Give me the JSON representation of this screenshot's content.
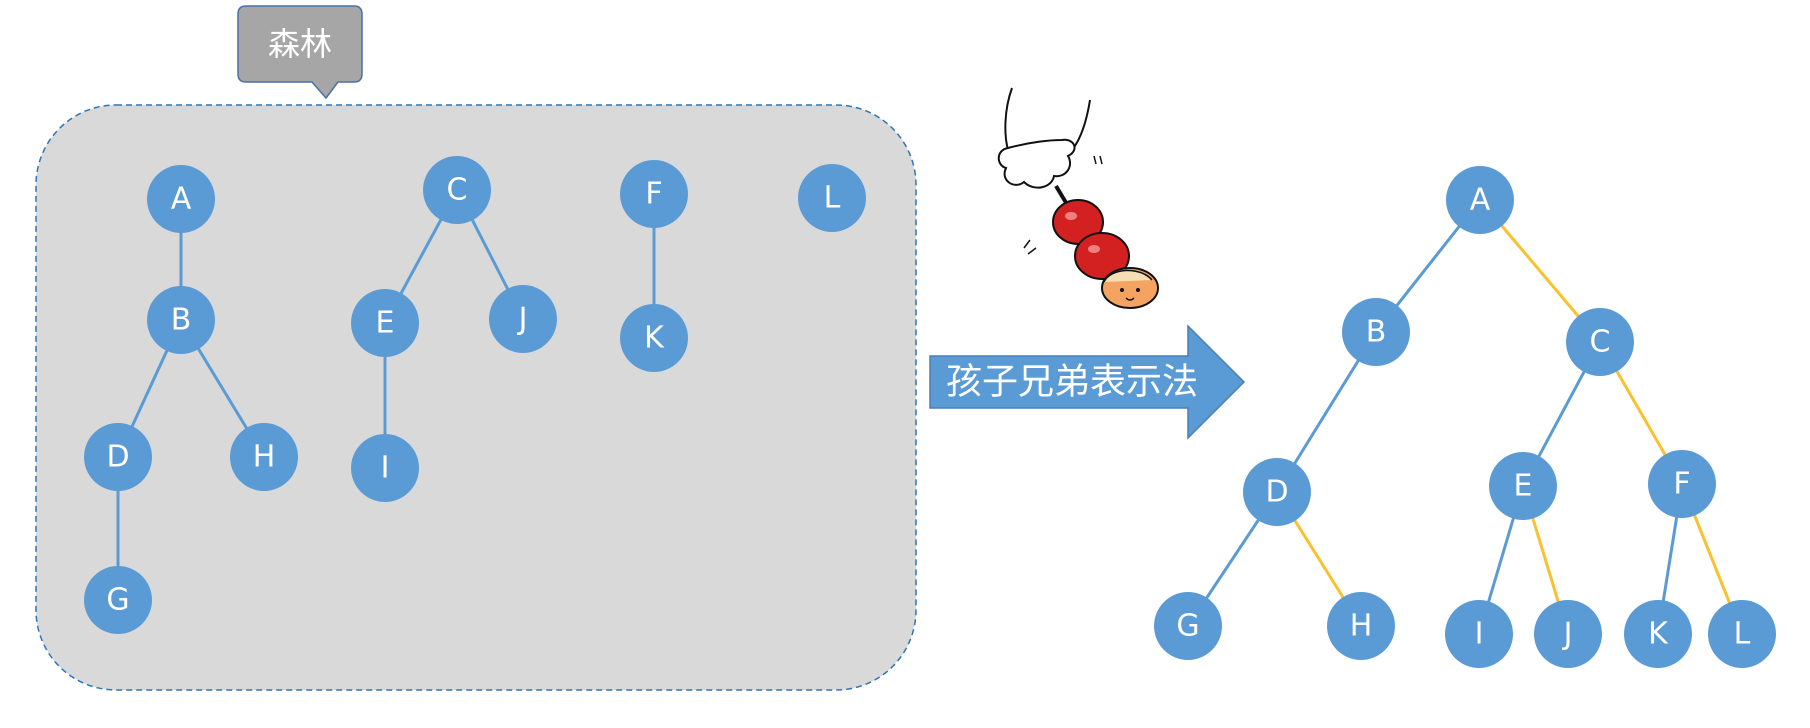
{
  "forest": {
    "label": "森林",
    "trees": [
      {
        "nodes": [
          "A",
          "B",
          "D",
          "H",
          "G"
        ],
        "edges": [
          [
            "A",
            "B"
          ],
          [
            "B",
            "D"
          ],
          [
            "B",
            "H"
          ],
          [
            "D",
            "G"
          ]
        ]
      },
      {
        "nodes": [
          "C",
          "E",
          "J",
          "I"
        ],
        "edges": [
          [
            "C",
            "E"
          ],
          [
            "C",
            "J"
          ],
          [
            "E",
            "I"
          ]
        ]
      },
      {
        "nodes": [
          "F",
          "K"
        ],
        "edges": [
          [
            "F",
            "K"
          ]
        ]
      },
      {
        "nodes": [
          "L"
        ],
        "edges": []
      }
    ]
  },
  "arrow": {
    "label": "孩子兄弟表示法"
  },
  "binary_tree": {
    "nodes": [
      "A",
      "B",
      "C",
      "D",
      "E",
      "F",
      "G",
      "H",
      "I",
      "J",
      "K",
      "L"
    ],
    "child_edges": [
      [
        "A",
        "B"
      ],
      [
        "B",
        "D"
      ],
      [
        "D",
        "G"
      ],
      [
        "C",
        "E"
      ],
      [
        "E",
        "I"
      ],
      [
        "F",
        "K"
      ]
    ],
    "sibling_edges": [
      [
        "A",
        "C"
      ],
      [
        "C",
        "F"
      ],
      [
        "D",
        "H"
      ],
      [
        "E",
        "J"
      ],
      [
        "F",
        "L"
      ]
    ]
  },
  "colors": {
    "node_fill": "#5b9bd5",
    "child_edge": "#5b9bd5",
    "sibling_edge": "#fbc02d",
    "forest_bg": "#d9d9d9",
    "forest_border": "#2e75b6",
    "callout_fill": "#a6a6a6",
    "callout_border": "#4a6fa5"
  },
  "decoration": {
    "icon": "tanghulu-skewer-icon"
  }
}
